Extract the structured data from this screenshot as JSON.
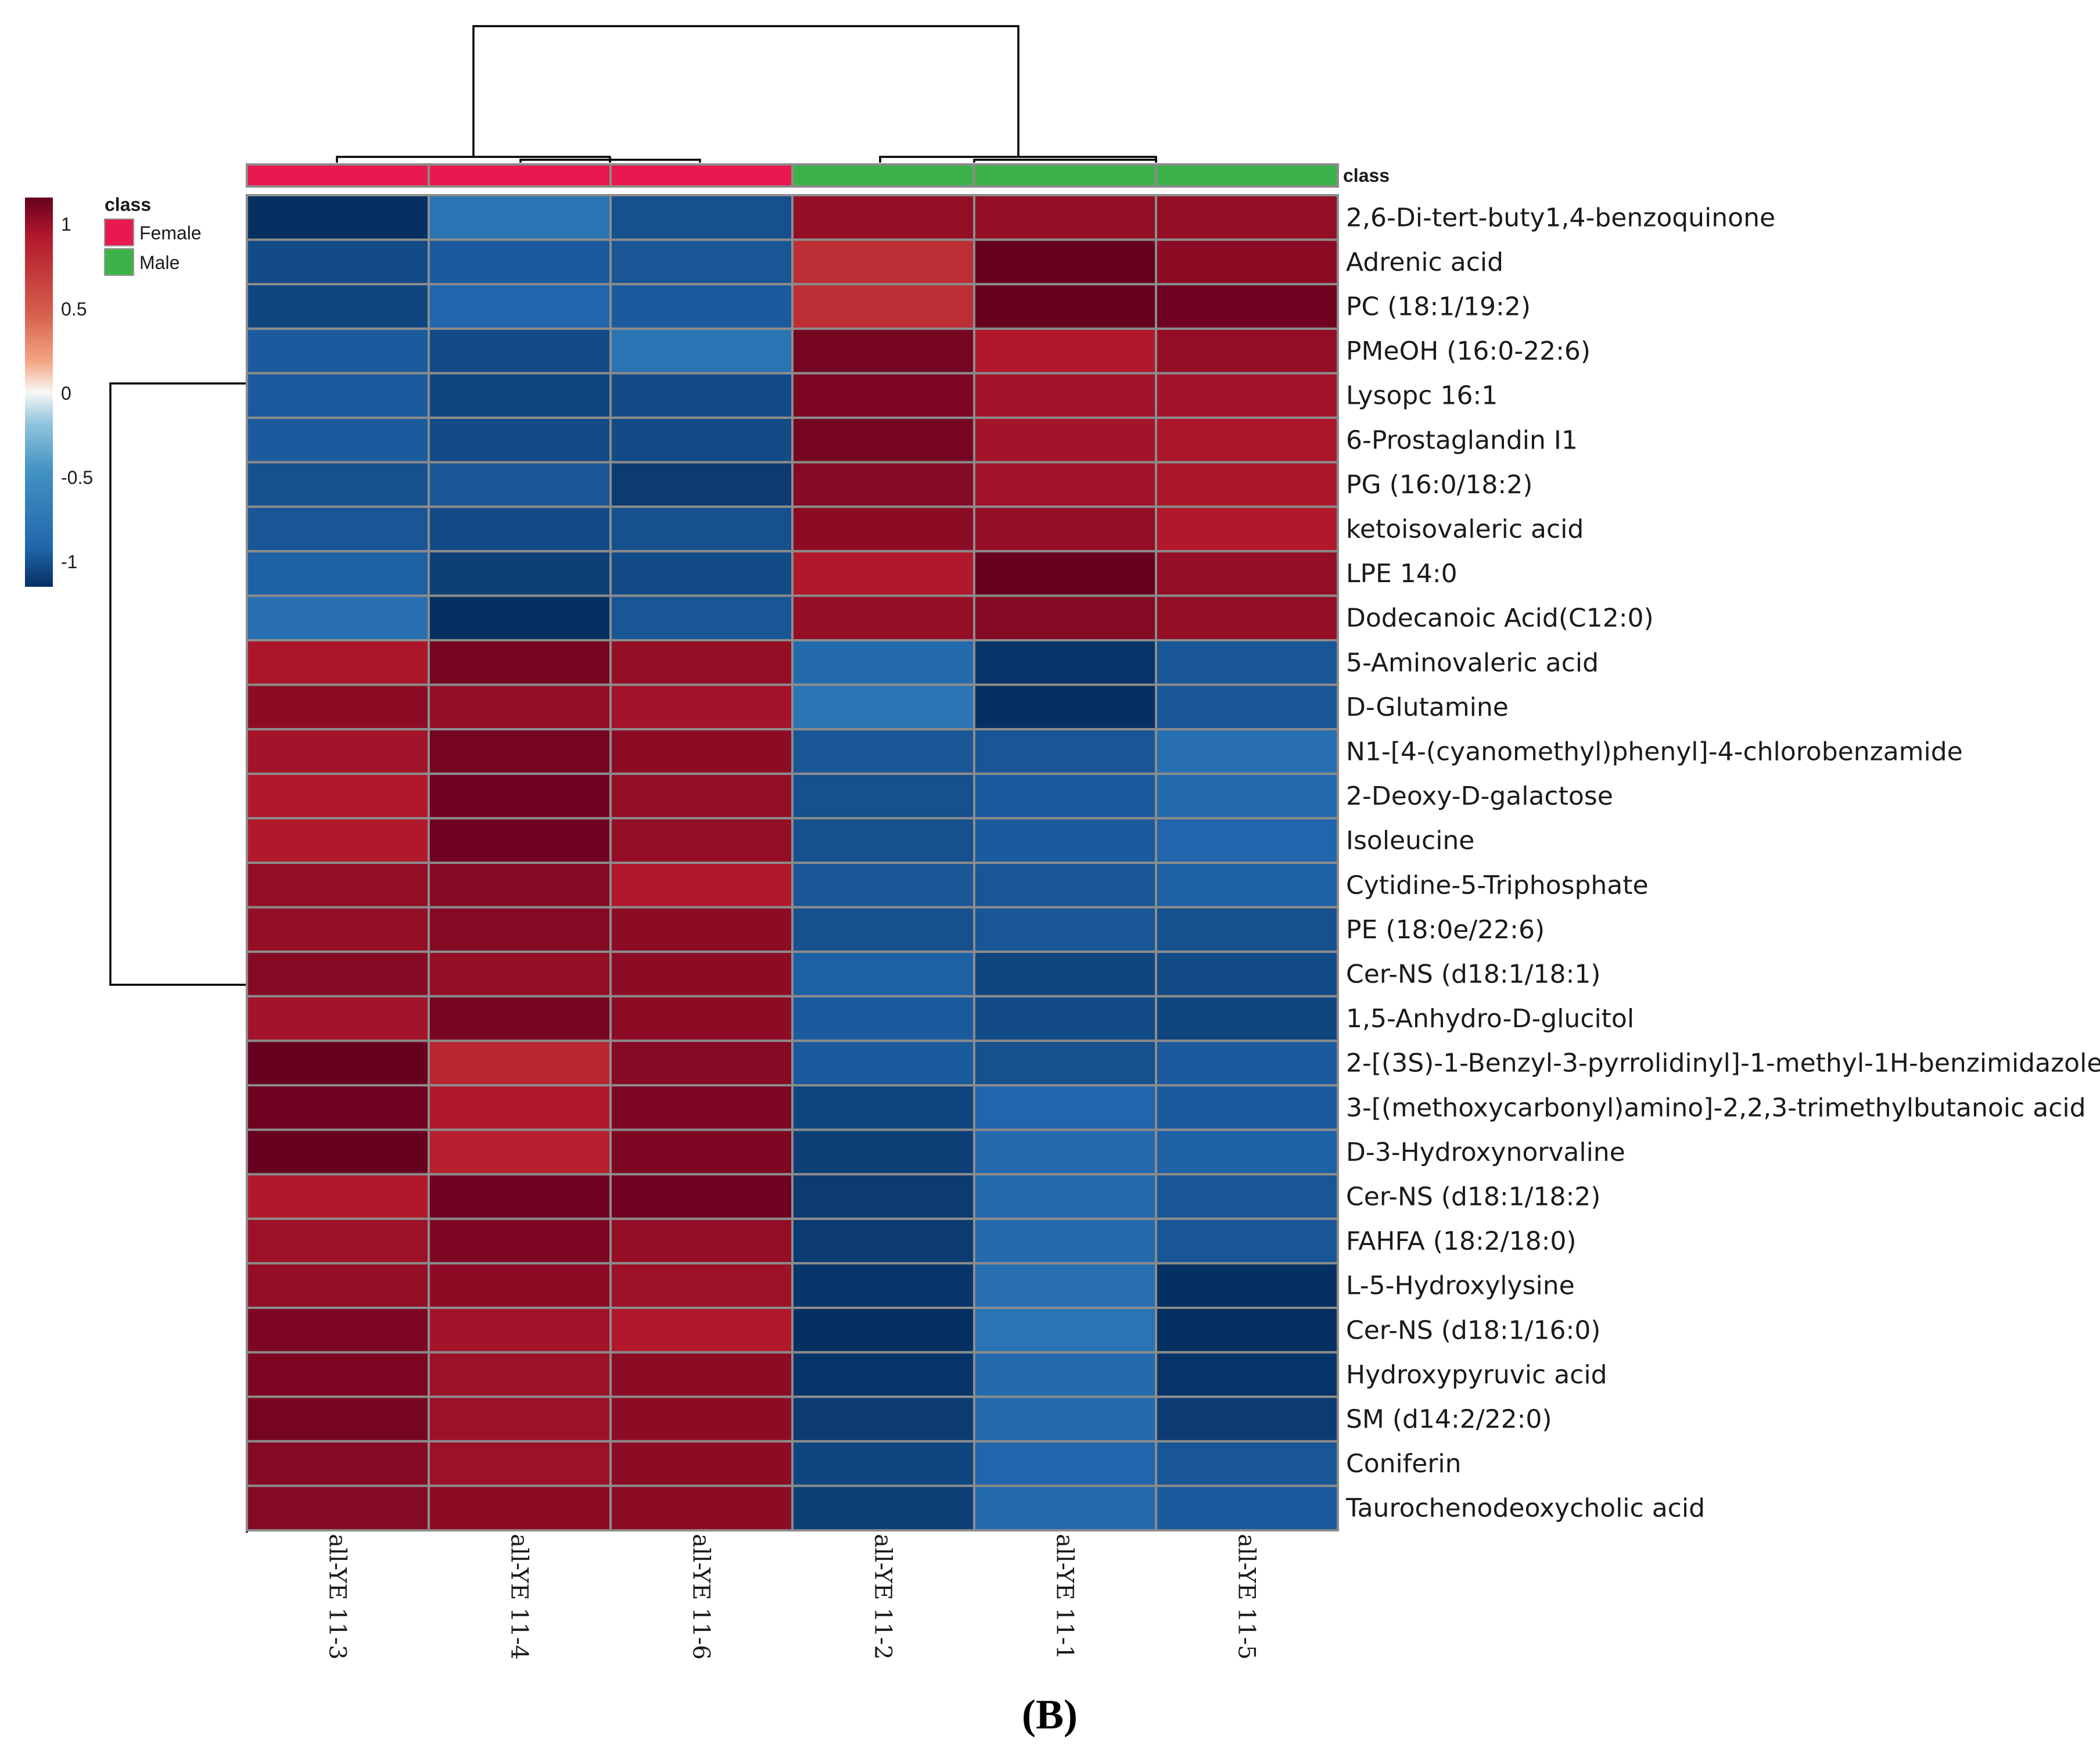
{
  "chart_data": {
    "type": "heatmap",
    "title": "",
    "caption": "(B)",
    "columns": [
      "all-YE 11-3",
      "all-YE 11-4",
      "all-YE 11-6",
      "all-YE 11-2",
      "all-YE 11-1",
      "all-YE 11-5"
    ],
    "column_classes": [
      "Female",
      "Female",
      "Female",
      "Male",
      "Male",
      "Male"
    ],
    "class_bar_label": "class",
    "rows": [
      "2,6-Di-tert-buty1,4-benzoquinone",
      "Adrenic acid",
      "PC (18:1/19:2)",
      "PMeOH (16:0-22:6)",
      "Lysopc 16:1",
      "6-Prostaglandin I1",
      "PG (16:0/18:2)",
      "ketoisovaleric acid",
      "LPE 14:0",
      "Dodecanoic Acid(C12:0)",
      "5-Aminovaleric acid",
      "D-Glutamine",
      "N1-[4-(cyanomethyl)phenyl]-4-chlorobenzamide",
      "2-Deoxy-D-galactose",
      "Isoleucine",
      "Cytidine-5-Triphosphate",
      "PE (18:0e/22:6)",
      "Cer-NS (d18:1/18:1)",
      "1,5-Anhydro-D-glucitol",
      "2-[(3S)-1-Benzyl-3-pyrrolidinyl]-1-methyl-1H-benzimidazole",
      "3-[(methoxycarbonyl)amino]-2,2,3-trimethylbutanoic acid",
      "D-3-Hydroxynorvaline",
      "Cer-NS (d18:1/18:2)",
      "FAHFA (18:2/18:0)",
      "L-5-Hydroxylysine",
      "Cer-NS (d18:1/16:0)",
      "Hydroxypyruvic acid",
      "SM (d14:2/22:0)",
      "Coniferin",
      "Taurochenodeoxycholic acid"
    ],
    "values": [
      [
        -1.25,
        -0.6,
        -0.95,
        0.95,
        0.95,
        0.95
      ],
      [
        -1.0,
        -0.85,
        -0.9,
        0.6,
        1.3,
        1.0
      ],
      [
        -1.05,
        -0.75,
        -0.85,
        0.6,
        1.35,
        1.2
      ],
      [
        -0.85,
        -1.0,
        -0.6,
        1.15,
        0.75,
        0.95
      ],
      [
        -0.85,
        -1.05,
        -1.0,
        1.1,
        0.85,
        0.85
      ],
      [
        -0.85,
        -1.0,
        -1.0,
        1.15,
        0.85,
        0.8
      ],
      [
        -0.95,
        -0.9,
        -1.15,
        1.05,
        0.85,
        0.8
      ],
      [
        -0.9,
        -1.0,
        -0.95,
        1.0,
        0.95,
        0.75
      ],
      [
        -0.8,
        -1.1,
        -1.0,
        0.75,
        1.25,
        0.95
      ],
      [
        -0.65,
        -1.25,
        -0.9,
        0.95,
        1.05,
        0.95
      ],
      [
        0.8,
        1.15,
        0.95,
        -0.7,
        -1.2,
        -0.9
      ],
      [
        1.0,
        0.95,
        0.85,
        -0.6,
        -1.3,
        -0.9
      ],
      [
        0.85,
        1.15,
        1.0,
        -0.9,
        -0.9,
        -0.65
      ],
      [
        0.75,
        1.2,
        0.95,
        -0.95,
        -0.85,
        -0.7
      ],
      [
        0.75,
        1.2,
        0.95,
        -0.95,
        -0.85,
        -0.75
      ],
      [
        0.95,
        1.05,
        0.75,
        -0.9,
        -0.9,
        -0.8
      ],
      [
        0.95,
        1.05,
        1.0,
        -0.95,
        -0.9,
        -0.95
      ],
      [
        1.05,
        0.95,
        1.0,
        -0.8,
        -1.05,
        -1.0
      ],
      [
        0.85,
        1.15,
        1.0,
        -0.85,
        -1.0,
        -1.05
      ],
      [
        1.3,
        0.65,
        1.05,
        -0.85,
        -0.95,
        -0.85
      ],
      [
        1.2,
        0.75,
        1.1,
        -1.05,
        -0.75,
        -0.85
      ],
      [
        1.3,
        0.7,
        1.1,
        -1.1,
        -0.7,
        -0.8
      ],
      [
        0.75,
        1.2,
        1.2,
        -1.15,
        -0.7,
        -0.9
      ],
      [
        0.9,
        1.1,
        0.95,
        -1.15,
        -0.7,
        -0.9
      ],
      [
        0.95,
        1.0,
        0.9,
        -1.2,
        -0.65,
        -1.3
      ],
      [
        1.1,
        0.85,
        0.75,
        -1.35,
        -0.6,
        -1.25
      ],
      [
        1.1,
        0.9,
        1.0,
        -1.2,
        -0.7,
        -1.2
      ],
      [
        1.15,
        0.9,
        1.0,
        -1.15,
        -0.7,
        -1.15
      ],
      [
        1.05,
        0.9,
        1.0,
        -1.05,
        -0.75,
        -0.9
      ],
      [
        1.05,
        1.0,
        1.0,
        -1.1,
        -0.7,
        -0.85
      ]
    ],
    "colorbar": {
      "ticks": [
        "1",
        "0.5",
        "0",
        "-0.5",
        "-1"
      ],
      "range": [
        -1.25,
        1.25
      ],
      "high_color": "#67001f",
      "mid_color": "#f7f7f7",
      "low_color": "#053061"
    },
    "legend": {
      "title": "class",
      "entries": [
        {
          "label": "Female",
          "color": "#e8194e"
        },
        {
          "label": "Male",
          "color": "#3cb34a"
        }
      ]
    }
  }
}
